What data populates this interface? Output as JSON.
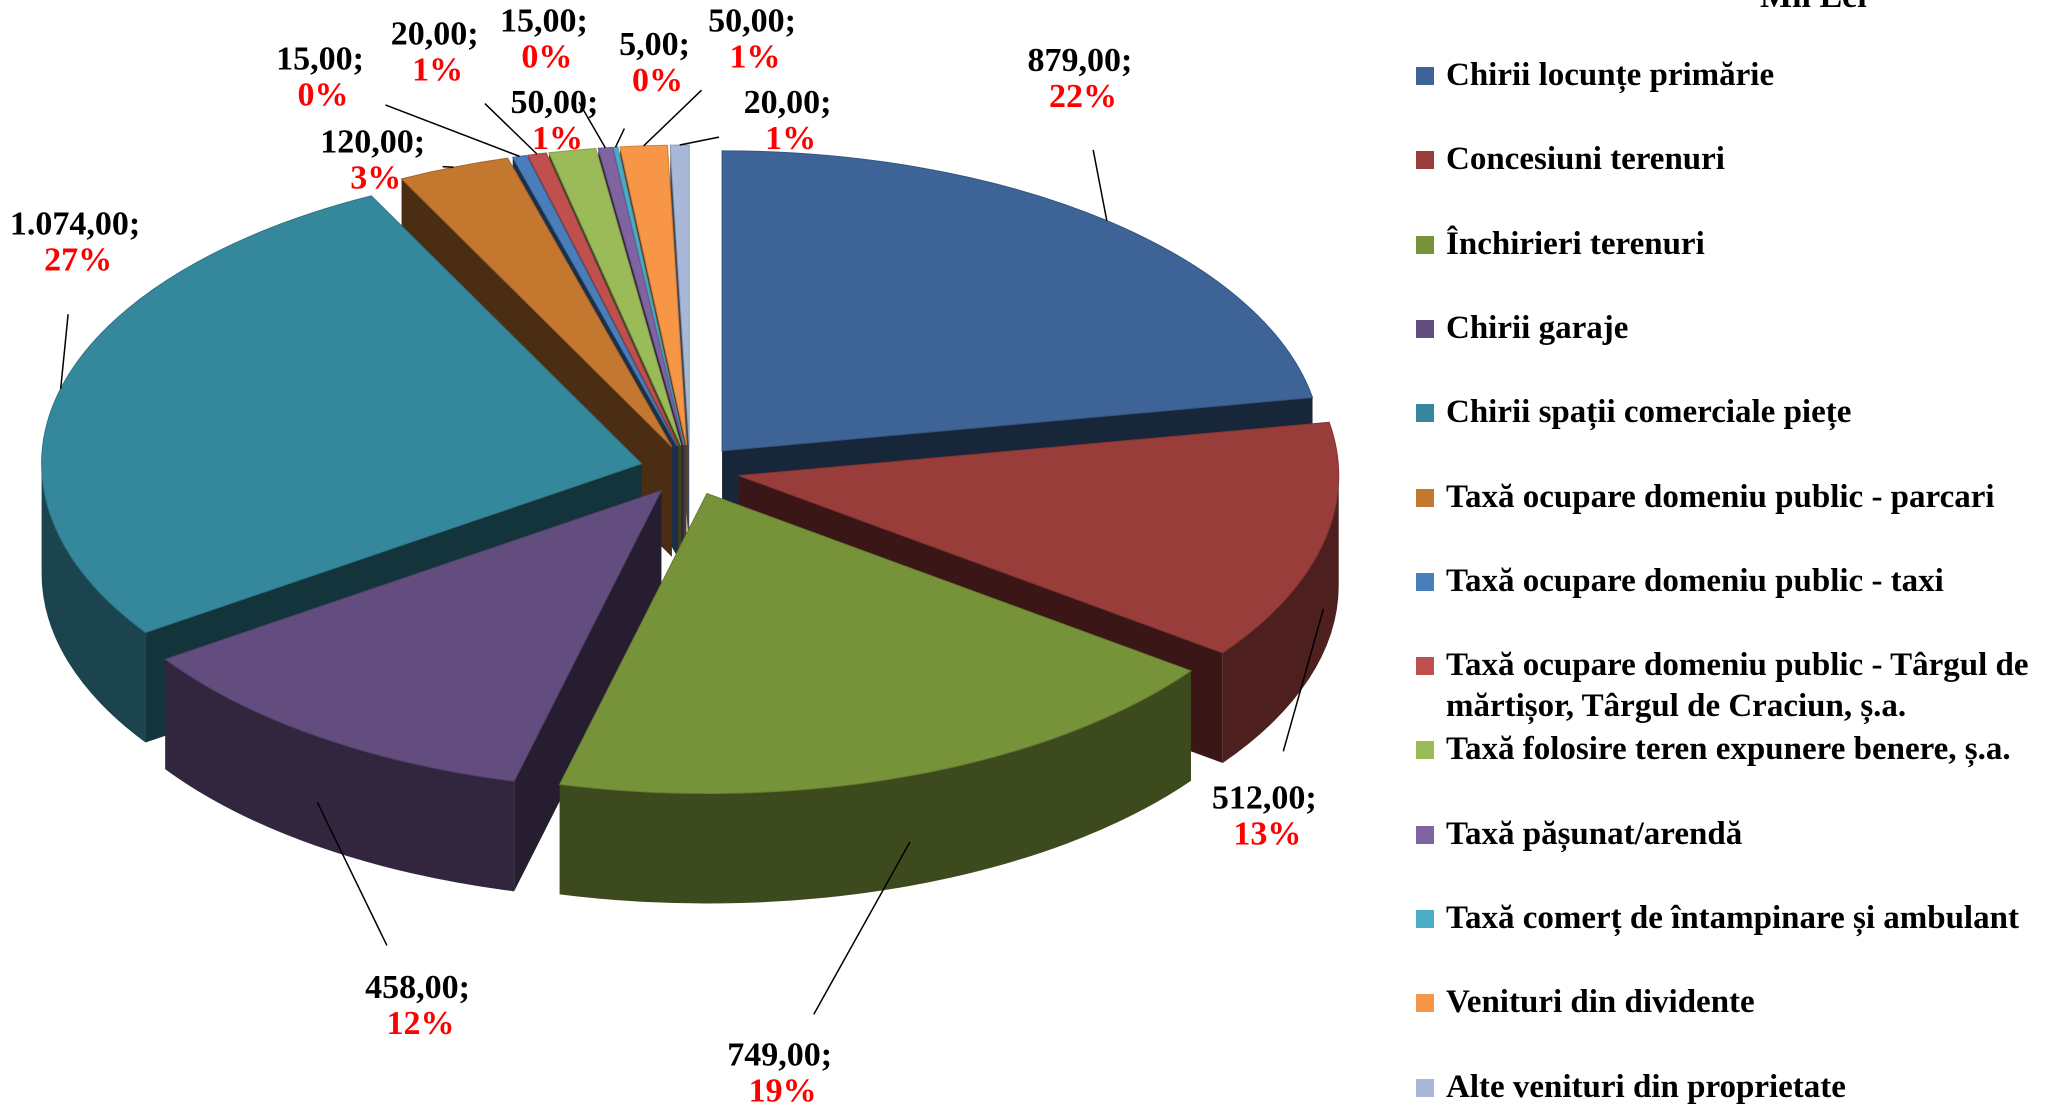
{
  "chart_data": {
    "type": "pie3d",
    "legend_title": "Mii Lei",
    "categories": [
      "Chirii locunțe primărie",
      "Concesiuni terenuri",
      "Închirieri terenuri",
      "Chirii garaje",
      "Chirii spații comerciale piețe",
      "Taxă ocupare domeniu public - parcari",
      "Taxă ocupare domeniu public - taxi",
      "Taxă ocupare domeniu public - Târgul de mărtișor, Târgul de Craciun, ș.a.",
      "Taxă folosire teren expunere benere, ș.a.",
      "Taxă pășunat/arendă",
      "Taxă comerț de întampinare și ambulant",
      "Venituri din dividente",
      "Alte venituri din proprietate"
    ],
    "values": [
      879,
      512,
      749,
      458,
      1074,
      120,
      15,
      20,
      50,
      15,
      5,
      50,
      20
    ],
    "value_labels": [
      "879,00;",
      "512,00;",
      "749,00;",
      "458,00;",
      "1.074,00;",
      "120,00;",
      "15,00;",
      "20,00;",
      "50,00;",
      "15,00;",
      "5,00;",
      "50,00;",
      "20,00;"
    ],
    "percent_labels": [
      "22%",
      "13%",
      "19%",
      "12%",
      "27%",
      "3%",
      "0%",
      "1%",
      "1%",
      "0%",
      "0%",
      "1%",
      "1%"
    ],
    "colors": [
      "#3e6497",
      "#993d3b",
      "#779339",
      "#634c7e",
      "#35889c",
      "#c3772f",
      "#4a7ebb",
      "#c0504d",
      "#9bbb59",
      "#8064a2",
      "#4bacc6",
      "#f79646",
      "#a9b8d8"
    ],
    "legend_position": "right"
  }
}
